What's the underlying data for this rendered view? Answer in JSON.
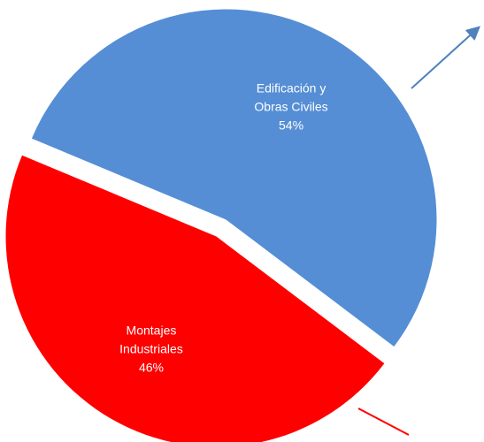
{
  "chart_data": {
    "type": "pie",
    "categories": [
      "Edificación y Obras Civiles",
      "Montajes Industriales"
    ],
    "values": [
      54,
      46
    ],
    "value_labels": [
      "54%",
      "46%"
    ],
    "colors": [
      "#558ed5",
      "#ff0000"
    ]
  }
}
